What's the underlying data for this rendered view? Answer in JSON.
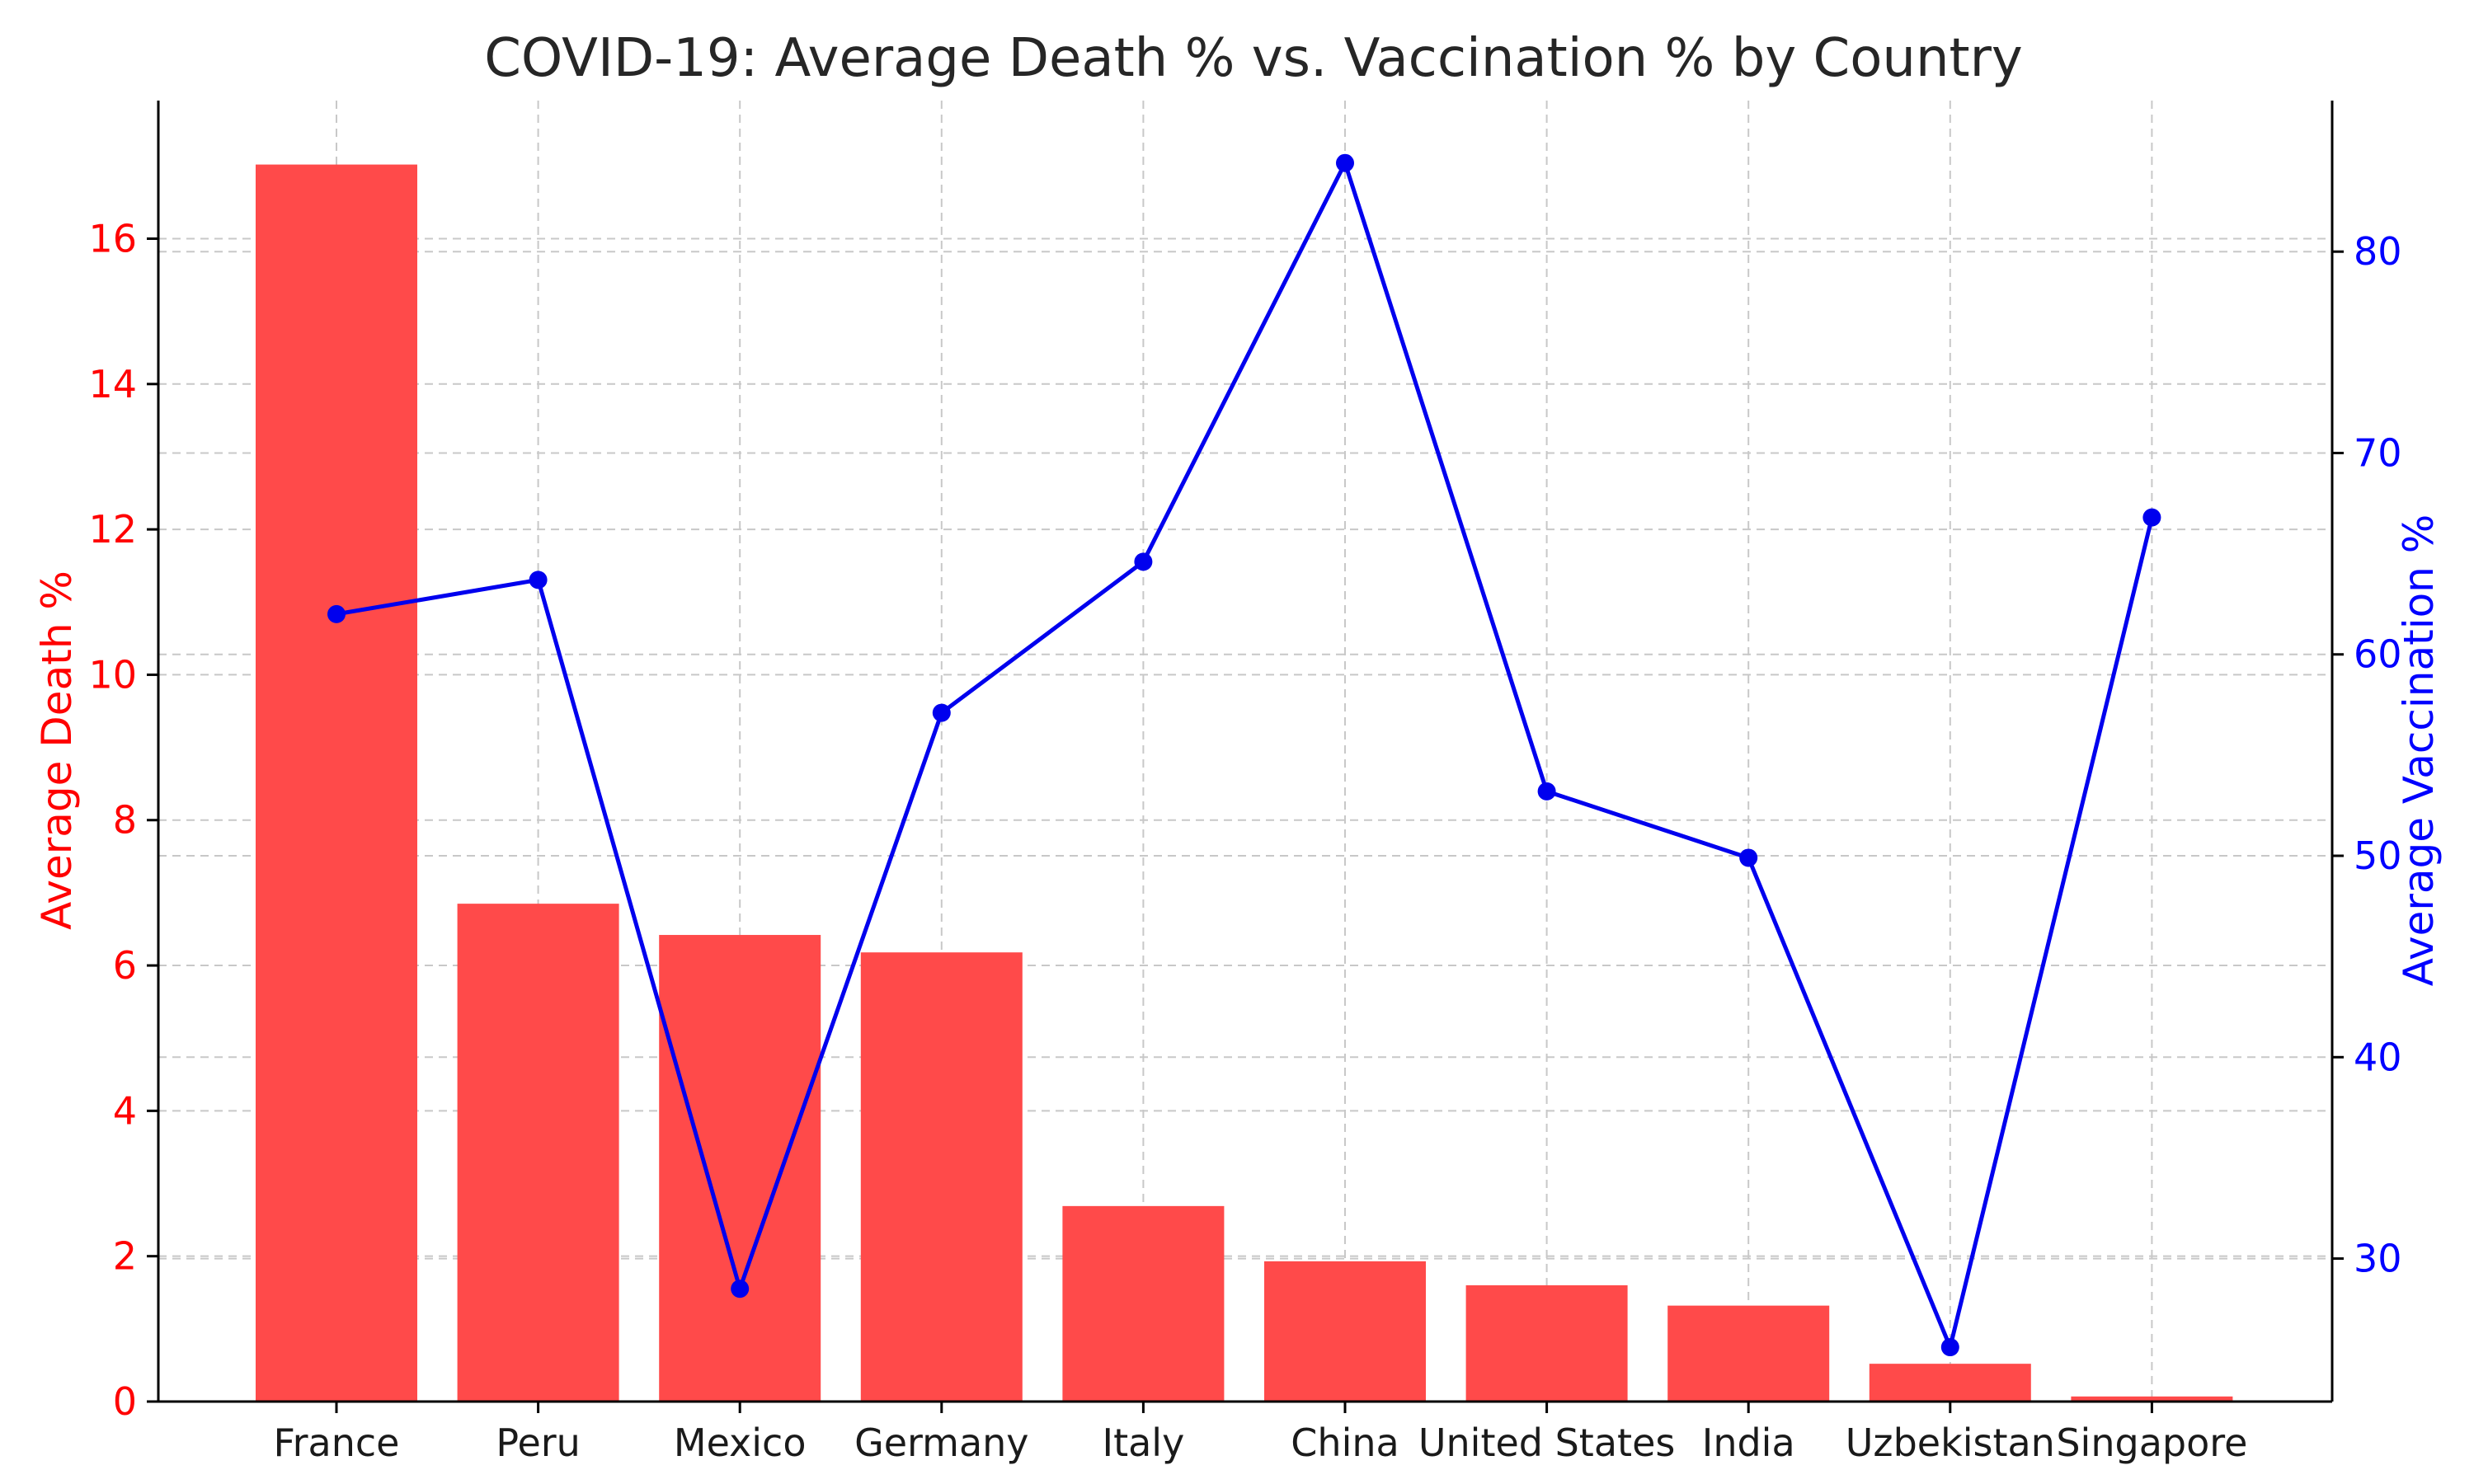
{
  "chart_data": {
    "type": "bar",
    "title": "COVID-19: Average Death % vs. Vaccination % by Country",
    "categories": [
      "France",
      "Peru",
      "Mexico",
      "Germany",
      "Italy",
      "China",
      "United States",
      "India",
      "Uzbekistan",
      "Singapore"
    ],
    "ylabel": "Average Death %",
    "y2label": "Average Vaccination %",
    "ylim": [
      0,
      17.9
    ],
    "y2lim": [
      22.9,
      87.5
    ],
    "yticks": [
      0,
      2,
      4,
      6,
      8,
      10,
      12,
      14,
      16
    ],
    "y2ticks": [
      30,
      40,
      50,
      60,
      70,
      80
    ],
    "grid": true,
    "series": [
      {
        "type": "bar",
        "axis": "left",
        "color": "#ff4a4a",
        "values": [
          17.02,
          6.85,
          6.42,
          6.18,
          2.69,
          1.93,
          1.6,
          1.32,
          0.52,
          0.07
        ]
      },
      {
        "type": "line",
        "axis": "right",
        "color": "#0000ee",
        "marker": "circle",
        "values": [
          62.0,
          63.7,
          28.5,
          57.1,
          64.6,
          84.4,
          53.2,
          49.9,
          25.6,
          66.8
        ]
      }
    ]
  }
}
